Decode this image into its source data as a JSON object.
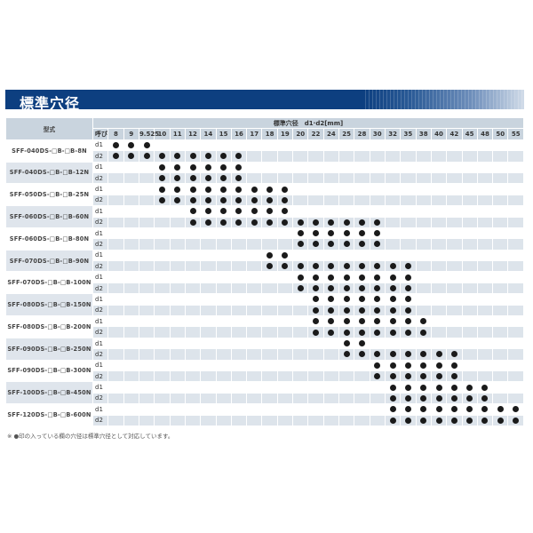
{
  "title": "標準穴径",
  "table": {
    "model_header": "型式",
    "group_header": "標準穴径　d1·d2[mm]",
    "nominal_label": "呼び",
    "columns": [
      "8",
      "9",
      "9.525",
      "10",
      "11",
      "12",
      "14",
      "15",
      "16",
      "17",
      "18",
      "19",
      "20",
      "22",
      "24",
      "25",
      "28",
      "30",
      "32",
      "35",
      "38",
      "40",
      "42",
      "45",
      "48",
      "50",
      "55"
    ],
    "rows": [
      {
        "model": "SFF-040DS-□B-□B-8N",
        "d1": [
          "8",
          "9",
          "9.525"
        ],
        "d2": [
          "8",
          "9",
          "9.525",
          "10",
          "11",
          "12",
          "14",
          "15",
          "16"
        ]
      },
      {
        "model": "SFF-040DS-□B-□B-12N",
        "d1": [
          "10",
          "11",
          "12",
          "14",
          "15",
          "16"
        ],
        "d2": [
          "10",
          "11",
          "12",
          "14",
          "15",
          "16"
        ]
      },
      {
        "model": "SFF-050DS-□B-□B-25N",
        "d1": [
          "10",
          "11",
          "12",
          "14",
          "15",
          "16",
          "17",
          "18",
          "19"
        ],
        "d2": [
          "10",
          "11",
          "12",
          "14",
          "15",
          "16",
          "17",
          "18",
          "19"
        ]
      },
      {
        "model": "SFF-060DS-□B-□B-60N",
        "d1": [
          "12",
          "14",
          "15",
          "16",
          "17",
          "18",
          "19"
        ],
        "d2": [
          "12",
          "14",
          "15",
          "16",
          "17",
          "18",
          "19",
          "20",
          "22",
          "24",
          "25",
          "28",
          "30"
        ]
      },
      {
        "model": "SFF-060DS-□B-□B-80N",
        "d1": [
          "20",
          "22",
          "24",
          "25",
          "28",
          "30"
        ],
        "d2": [
          "20",
          "22",
          "24",
          "25",
          "28",
          "30"
        ]
      },
      {
        "model": "SFF-070DS-□B-□B-90N",
        "d1": [
          "18",
          "19"
        ],
        "d2": [
          "18",
          "19",
          "20",
          "22",
          "24",
          "25",
          "28",
          "30",
          "32",
          "35"
        ]
      },
      {
        "model": "SFF-070DS-□B-□B-100N",
        "d1": [
          "20",
          "22",
          "24",
          "25",
          "28",
          "30",
          "32",
          "35"
        ],
        "d2": [
          "20",
          "22",
          "24",
          "25",
          "28",
          "30",
          "32",
          "35"
        ]
      },
      {
        "model": "SFF-080DS-□B-□B-150N",
        "d1": [
          "22",
          "24",
          "25",
          "28",
          "30",
          "32",
          "35"
        ],
        "d2": [
          "22",
          "24",
          "25",
          "28",
          "30",
          "32",
          "35"
        ]
      },
      {
        "model": "SFF-080DS-□B-□B-200N",
        "d1": [
          "22",
          "24",
          "25",
          "28",
          "30",
          "32",
          "35",
          "38"
        ],
        "d2": [
          "22",
          "24",
          "25",
          "28",
          "30",
          "32",
          "35",
          "38"
        ]
      },
      {
        "model": "SFF-090DS-□B-□B-250N",
        "d1": [
          "25",
          "28"
        ],
        "d2": [
          "25",
          "28",
          "30",
          "32",
          "35",
          "38",
          "40",
          "42"
        ]
      },
      {
        "model": "SFF-090DS-□B-□B-300N",
        "d1": [
          "30",
          "32",
          "35",
          "38",
          "40",
          "42"
        ],
        "d2": [
          "30",
          "32",
          "35",
          "38",
          "40",
          "42"
        ]
      },
      {
        "model": "SFF-100DS-□B-□B-450N",
        "d1": [
          "32",
          "35",
          "38",
          "40",
          "42",
          "45",
          "48"
        ],
        "d2": [
          "32",
          "35",
          "38",
          "40",
          "42",
          "45",
          "48"
        ]
      },
      {
        "model": "SFF-120DS-□B-□B-600N",
        "d1": [
          "32",
          "35",
          "38",
          "40",
          "42",
          "45",
          "48",
          "50",
          "55"
        ],
        "d2": [
          "32",
          "35",
          "38",
          "40",
          "42",
          "45",
          "48",
          "50",
          "55"
        ]
      }
    ],
    "d1_label": "d1",
    "d2_label": "d2"
  },
  "note": "※ ●印の入っている欄の穴径は標準穴径として対応しています。",
  "colors": {
    "title_bar": "#0d3f80",
    "header": "#c9d4de",
    "stripe": "#dde4eb",
    "dot": "#1a1a1a"
  }
}
